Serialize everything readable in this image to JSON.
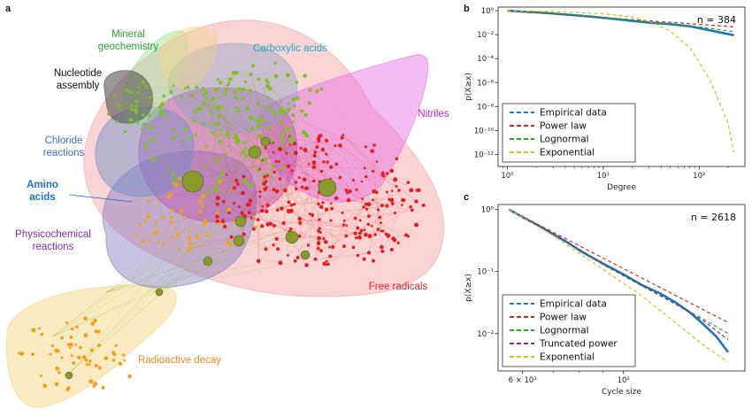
{
  "panels": {
    "a": "a",
    "b": "b",
    "c": "c"
  },
  "network": {
    "regions": [
      {
        "key": "mineral",
        "label": "Mineral geochemistry",
        "lines": [
          "Mineral",
          "geochemistry"
        ],
        "color": "#2ca02c",
        "fill": "#9be39b"
      },
      {
        "key": "carboxylic",
        "label": "Carboxylic acids",
        "lines": [
          "Carboxylic acids"
        ],
        "color": "#1fa8c9",
        "fill": "#8fa4c8"
      },
      {
        "key": "nucleotide",
        "label": "Nucleotide assembly",
        "lines": [
          "Nucleotide",
          "assembly"
        ],
        "color": "#111111",
        "fill": "#555555"
      },
      {
        "key": "nitriles",
        "label": "Nitriles",
        "lines": [
          "Nitriles"
        ],
        "color": "#d21fd2",
        "fill": "#e66be6"
      },
      {
        "key": "chloride",
        "label": "Chloride reactions",
        "lines": [
          "Chloride",
          "reactions"
        ],
        "color": "#3a6fc4",
        "fill": "#6d8fc9"
      },
      {
        "key": "amino",
        "label": "Amino acids",
        "lines": [
          "Amino",
          "acids"
        ],
        "color": "#1a73c7",
        "fill": "#b54db5",
        "bold": true
      },
      {
        "key": "physico",
        "label": "Physicochemical reactions",
        "lines": [
          "Physicochemical",
          "reactions"
        ],
        "color": "#7b2fa8",
        "fill": "#8479c2"
      },
      {
        "key": "freeradicals",
        "label": "Free radicals",
        "lines": [
          "Free radicals"
        ],
        "color": "#e0202a",
        "fill": "#f5a0a0"
      },
      {
        "key": "radioactive",
        "label": "Radioactive decay",
        "lines": [
          "Radioactive decay"
        ],
        "color": "#e8871a",
        "fill": "#f5d27a"
      }
    ],
    "node_colors": {
      "red": "#e01f1f",
      "green": "#7fbf2a",
      "orange": "#f0a020",
      "hub": "#8a9a2a"
    }
  },
  "chart_data": [
    {
      "panel": "b",
      "type": "line",
      "annotation": "n = 384",
      "xlabel": "Degree",
      "ylabel": "p(X≥x)",
      "xscale": "log",
      "yscale": "log",
      "xlim": [
        0.8,
        300
      ],
      "ylim": [
        1e-13,
        2
      ],
      "xticks": [
        {
          "v": 1,
          "l": "10⁰"
        },
        {
          "v": 10,
          "l": "10¹"
        },
        {
          "v": 100,
          "l": "10²"
        }
      ],
      "yticks": [
        {
          "v": 1,
          "l": "10⁰"
        },
        {
          "v": 0.01,
          "l": "10⁻²"
        },
        {
          "v": 0.0001,
          "l": "10⁻⁴"
        },
        {
          "v": 1e-06,
          "l": "10⁻⁶"
        },
        {
          "v": 1e-08,
          "l": "10⁻⁸"
        },
        {
          "v": 1e-10,
          "l": "10⁻¹⁰"
        },
        {
          "v": 1e-12,
          "l": "10⁻¹²"
        }
      ],
      "legend_position": "bottom-left",
      "series": [
        {
          "name": "Empirical data",
          "color": "#2277b5",
          "style": "solid",
          "width": 2.6,
          "x": [
            1,
            2,
            3,
            5,
            8,
            12,
            20,
            30,
            50,
            80,
            100,
            150,
            230
          ],
          "y": [
            1.0,
            0.72,
            0.58,
            0.42,
            0.3,
            0.22,
            0.14,
            0.1,
            0.075,
            0.05,
            0.035,
            0.018,
            0.009
          ]
        },
        {
          "name": "Power law",
          "color": "#d62728",
          "style": "dashed",
          "width": 1.2,
          "x": [
            1,
            230
          ],
          "y": [
            1.0,
            0.045
          ]
        },
        {
          "name": "Lognormal",
          "color": "#2ca02c",
          "style": "dashed",
          "width": 1.2,
          "x": [
            1,
            3,
            10,
            30,
            100,
            230
          ],
          "y": [
            1.0,
            0.6,
            0.28,
            0.12,
            0.045,
            0.018
          ]
        },
        {
          "name": "Exponential",
          "color": "#d4c21a",
          "style": "dashed",
          "width": 1.2,
          "x": [
            1,
            3,
            10,
            20,
            30,
            50,
            80,
            100,
            130,
            160,
            200,
            230
          ],
          "y": [
            1.0,
            0.85,
            0.55,
            0.3,
            0.13,
            0.02,
            0.0008,
            5e-05,
            1.5e-06,
            3e-08,
            4e-10,
            1.5e-12
          ]
        }
      ]
    },
    {
      "panel": "c",
      "type": "line",
      "annotation": "n = 2618",
      "xlabel": "Cycle size",
      "ylabel": "p(X≥x)",
      "xscale": "log",
      "yscale": "log",
      "xlim": [
        53,
        185
      ],
      "ylim": [
        0.0025,
        1.2
      ],
      "xticks": [
        {
          "v": 60,
          "l": "6 × 10¹"
        },
        {
          "v": 100,
          "l": "10²"
        }
      ],
      "yticks": [
        {
          "v": 1,
          "l": "10⁰"
        },
        {
          "v": 0.1,
          "l": "10⁻¹"
        },
        {
          "v": 0.01,
          "l": "10⁻²"
        }
      ],
      "legend_position": "bottom-left",
      "series": [
        {
          "name": "Empirical data",
          "color": "#2277b5",
          "style": "solid",
          "width": 2.6,
          "x": [
            56,
            60,
            65,
            70,
            75,
            80,
            85,
            90,
            95,
            100,
            110,
            120,
            130,
            140,
            150,
            160,
            170
          ],
          "y": [
            1.0,
            0.75,
            0.55,
            0.4,
            0.3,
            0.22,
            0.17,
            0.135,
            0.11,
            0.09,
            0.06,
            0.045,
            0.032,
            0.022,
            0.014,
            0.009,
            0.005
          ]
        },
        {
          "name": "Power law",
          "color": "#d62728",
          "style": "dashed",
          "width": 1.2,
          "x": [
            56,
            170
          ],
          "y": [
            1.0,
            0.015
          ]
        },
        {
          "name": "Lognormal",
          "color": "#2ca02c",
          "style": "dashed",
          "width": 1.2,
          "x": [
            56,
            70,
            90,
            110,
            130,
            150,
            170
          ],
          "y": [
            1.0,
            0.4,
            0.13,
            0.058,
            0.03,
            0.017,
            0.01
          ]
        },
        {
          "name": "Truncated power",
          "color": "#7b2fa8",
          "style": "dashed",
          "width": 1.2,
          "x": [
            56,
            70,
            90,
            110,
            130,
            150,
            170
          ],
          "y": [
            1.0,
            0.41,
            0.135,
            0.06,
            0.03,
            0.016,
            0.008
          ]
        },
        {
          "name": "Exponential",
          "color": "#d4c21a",
          "style": "dashed",
          "width": 1.2,
          "x": [
            56,
            70,
            90,
            110,
            130,
            150,
            170
          ],
          "y": [
            1.0,
            0.38,
            0.11,
            0.04,
            0.015,
            0.0065,
            0.0035
          ]
        }
      ]
    }
  ]
}
